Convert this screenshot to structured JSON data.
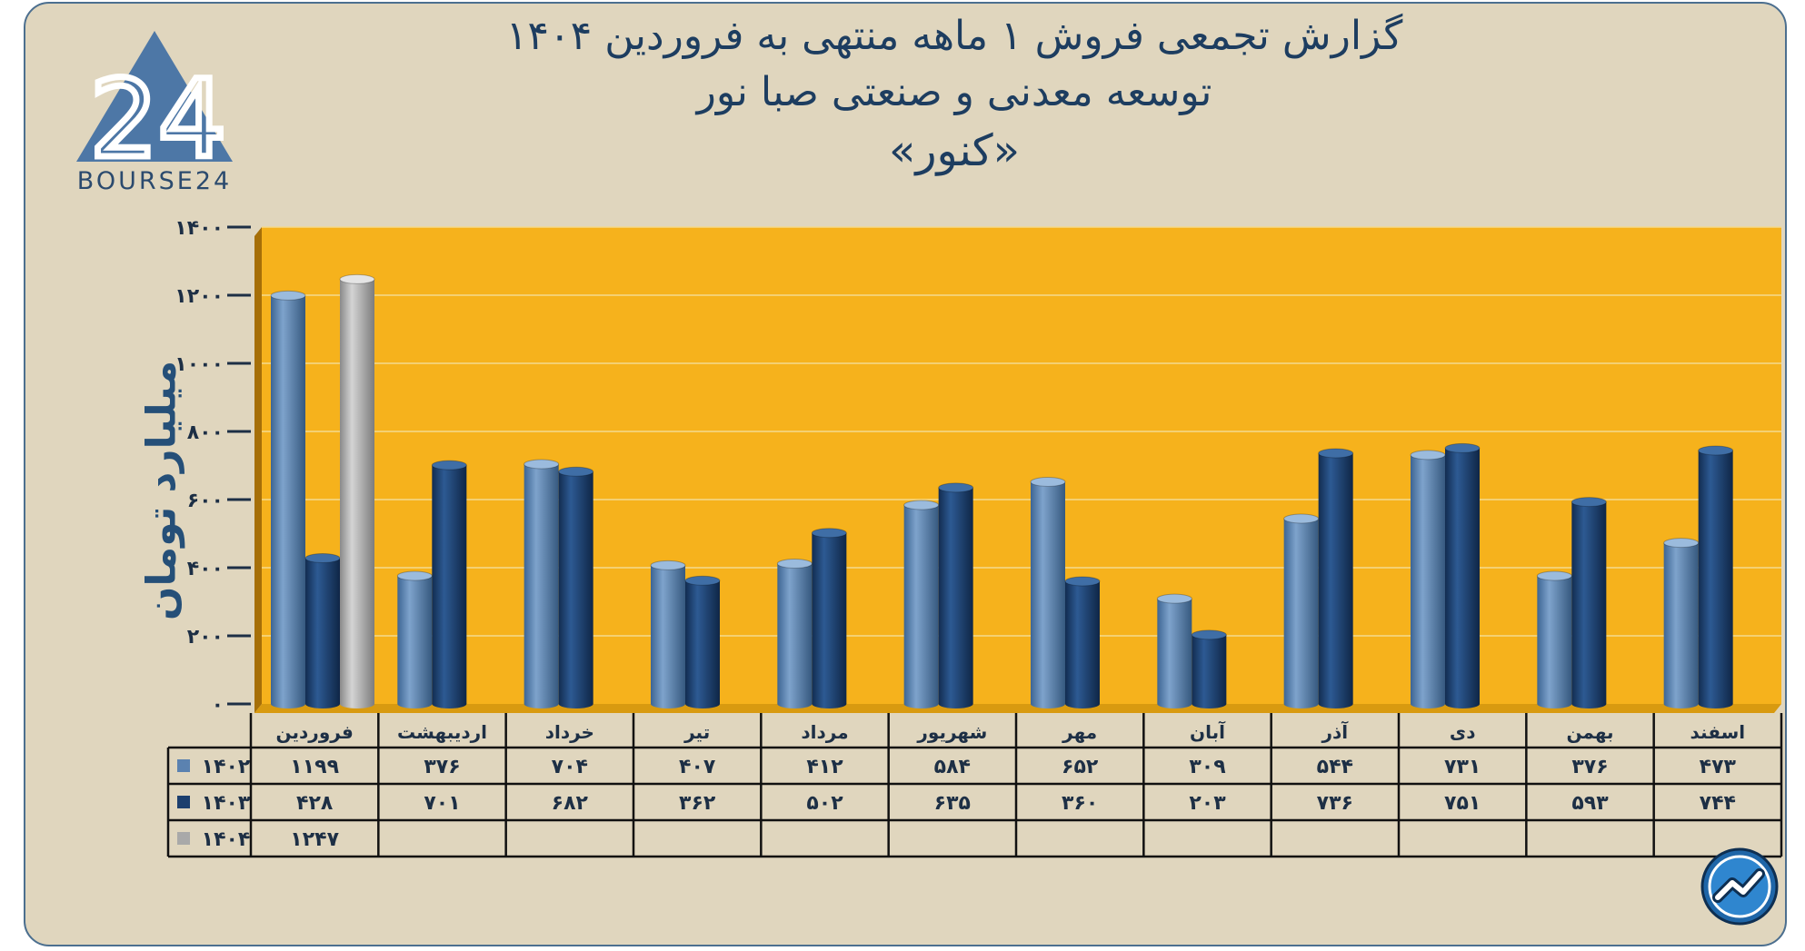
{
  "title_lines": [
    "گزارش تجمعی فروش ۱ ماهه منتهی به فروردین ۱۴۰۴",
    "توسعه معدنی و صنعتی صبا نور",
    "«کنور»"
  ],
  "logo": {
    "mark": "24",
    "text": "BOURSE24"
  },
  "chart_data": {
    "type": "bar",
    "ylabel": "میلیارد تومان",
    "ylim": [
      0,
      1400
    ],
    "yticks": [
      0,
      200,
      400,
      600,
      800,
      1000,
      1200,
      1400
    ],
    "ytick_labels": [
      "۰",
      "۲۰۰",
      "۴۰۰",
      "۶۰۰",
      "۸۰۰",
      "۱۰۰۰",
      "۱۲۰۰",
      "۱۴۰۰"
    ],
    "grid": true,
    "categories": [
      "فروردین",
      "اردیبهشت",
      "خرداد",
      "تیر",
      "مرداد",
      "شهریور",
      "مهر",
      "آبان",
      "آذر",
      "دی",
      "بهمن",
      "اسفند"
    ],
    "series": [
      {
        "name": "۱۴۰۲",
        "color": "#5b82b0",
        "values": [
          1199,
          376,
          704,
          407,
          412,
          584,
          652,
          309,
          544,
          731,
          376,
          473
        ],
        "labels": [
          "۱۱۹۹",
          "۳۷۶",
          "۷۰۴",
          "۴۰۷",
          "۴۱۲",
          "۵۸۴",
          "۶۵۲",
          "۳۰۹",
          "۵۴۴",
          "۷۳۱",
          "۳۷۶",
          "۴۷۳"
        ]
      },
      {
        "name": "۱۴۰۳",
        "color": "#1c3f6e",
        "values": [
          428,
          701,
          682,
          362,
          502,
          635,
          360,
          203,
          736,
          751,
          593,
          744
        ],
        "labels": [
          "۴۲۸",
          "۷۰۱",
          "۶۸۲",
          "۳۶۲",
          "۵۰۲",
          "۶۳۵",
          "۳۶۰",
          "۲۰۳",
          "۷۳۶",
          "۷۵۱",
          "۵۹۳",
          "۷۴۴"
        ]
      },
      {
        "name": "۱۴۰۴",
        "color": "#a9a9a9",
        "values": [
          1247,
          null,
          null,
          null,
          null,
          null,
          null,
          null,
          null,
          null,
          null,
          null
        ],
        "labels": [
          "۱۲۴۷",
          "",
          "",
          "",
          "",
          "",
          "",
          "",
          "",
          "",
          "",
          ""
        ]
      }
    ]
  },
  "colors": {
    "plot_background": "#f6b21c",
    "frame_background": "#e0d6be",
    "title": "#1d3d60"
  }
}
